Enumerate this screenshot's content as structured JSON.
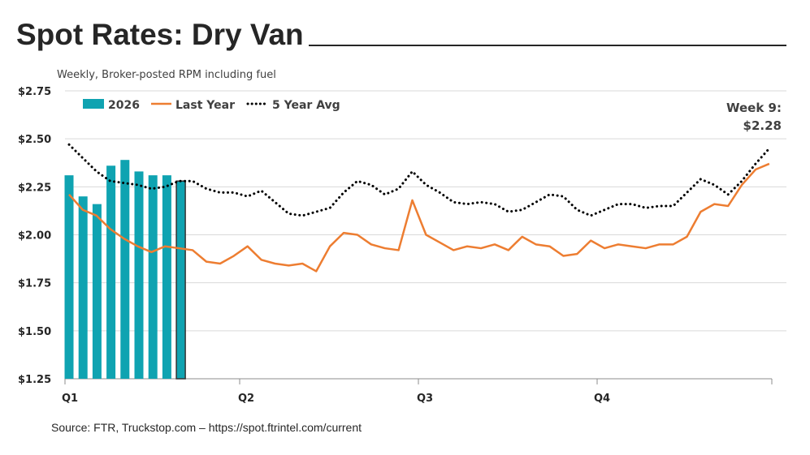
{
  "title": "Spot Rates: Dry Van",
  "source": "Source: FTR, Truckstop.com – https://spot.ftrintel.com/current",
  "chart_data": {
    "type": "bar+line",
    "title": "Spot Rates: Dry Van",
    "subtitle": "Weekly, Broker-posted RPM including fuel",
    "ylim": [
      1.25,
      2.75
    ],
    "yticks": [
      "$1.25",
      "$1.50",
      "$1.75",
      "$2.00",
      "$2.25",
      "$2.50",
      "$2.75"
    ],
    "ytick_values": [
      1.25,
      1.5,
      1.75,
      2.0,
      2.25,
      2.5,
      2.75
    ],
    "xticks": [
      "Q1",
      "Q2",
      "Q3",
      "Q4"
    ],
    "weeks": 52,
    "grid": true,
    "legend_position": "top-left",
    "annotation": {
      "line1": "Week 9:",
      "line2": "$2.28"
    },
    "colors": {
      "bars": "#0fa3b1",
      "last_year": "#ed7d31",
      "avg": "#000000"
    },
    "series": [
      {
        "name": "2026",
        "type": "bar",
        "values": [
          2.31,
          2.2,
          2.16,
          2.36,
          2.39,
          2.33,
          2.31,
          2.31,
          2.28
        ]
      },
      {
        "name": "Last Year",
        "type": "line",
        "values": [
          2.21,
          2.13,
          2.1,
          2.03,
          1.98,
          1.94,
          1.91,
          1.94,
          1.93,
          1.92,
          1.86,
          1.85,
          1.89,
          1.94,
          1.87,
          1.85,
          1.84,
          1.85,
          1.81,
          1.94,
          2.01,
          2.0,
          1.95,
          1.93,
          1.92,
          2.18,
          2.0,
          1.96,
          1.92,
          1.94,
          1.93,
          1.95,
          1.92,
          1.99,
          1.95,
          1.94,
          1.89,
          1.9,
          1.97,
          1.93,
          1.95,
          1.94,
          1.93,
          1.95,
          1.95,
          1.99,
          2.12,
          2.16,
          2.15,
          2.26,
          2.34,
          2.37
        ]
      },
      {
        "name": "5 Year Avg",
        "type": "dotted-line",
        "values": [
          2.47,
          2.4,
          2.33,
          2.28,
          2.27,
          2.26,
          2.24,
          2.25,
          2.28,
          2.28,
          2.24,
          2.22,
          2.22,
          2.2,
          2.23,
          2.17,
          2.11,
          2.1,
          2.12,
          2.14,
          2.22,
          2.28,
          2.26,
          2.21,
          2.24,
          2.33,
          2.26,
          2.22,
          2.17,
          2.16,
          2.17,
          2.16,
          2.12,
          2.13,
          2.17,
          2.21,
          2.2,
          2.13,
          2.1,
          2.13,
          2.16,
          2.16,
          2.14,
          2.15,
          2.15,
          2.22,
          2.29,
          2.26,
          2.21,
          2.28,
          2.37,
          2.45
        ]
      }
    ]
  }
}
